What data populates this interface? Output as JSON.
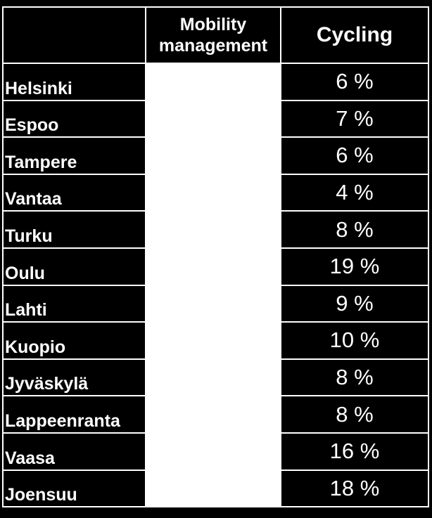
{
  "header": {
    "city": "",
    "mobility_management": "Mobility management",
    "cycling": "Cycling"
  },
  "rows": [
    {
      "city": "Helsinki",
      "mobility_management": "",
      "cycling": "6 %"
    },
    {
      "city": "Espoo",
      "mobility_management": "",
      "cycling": "7 %"
    },
    {
      "city": "Tampere",
      "mobility_management": "",
      "cycling": "6 %"
    },
    {
      "city": "Vantaa",
      "mobility_management": "",
      "cycling": "4 %"
    },
    {
      "city": "Turku",
      "mobility_management": "",
      "cycling": "8 %"
    },
    {
      "city": "Oulu",
      "mobility_management": "",
      "cycling": "19 %"
    },
    {
      "city": "Lahti",
      "mobility_management": "",
      "cycling": "9 %"
    },
    {
      "city": "Kuopio",
      "mobility_management": "",
      "cycling": "10 %"
    },
    {
      "city": "Jyväskylä",
      "mobility_management": "",
      "cycling": "8 %"
    },
    {
      "city": "Lappeenranta",
      "mobility_management": "",
      "cycling": "8 %"
    },
    {
      "city": "Vaasa",
      "mobility_management": "",
      "cycling": "16 %"
    },
    {
      "city": "Joensuu",
      "mobility_management": "",
      "cycling": "18 %"
    }
  ],
  "colors": {
    "background": "#000000",
    "text": "#ffffff",
    "highlight_column": "#ffffff"
  }
}
